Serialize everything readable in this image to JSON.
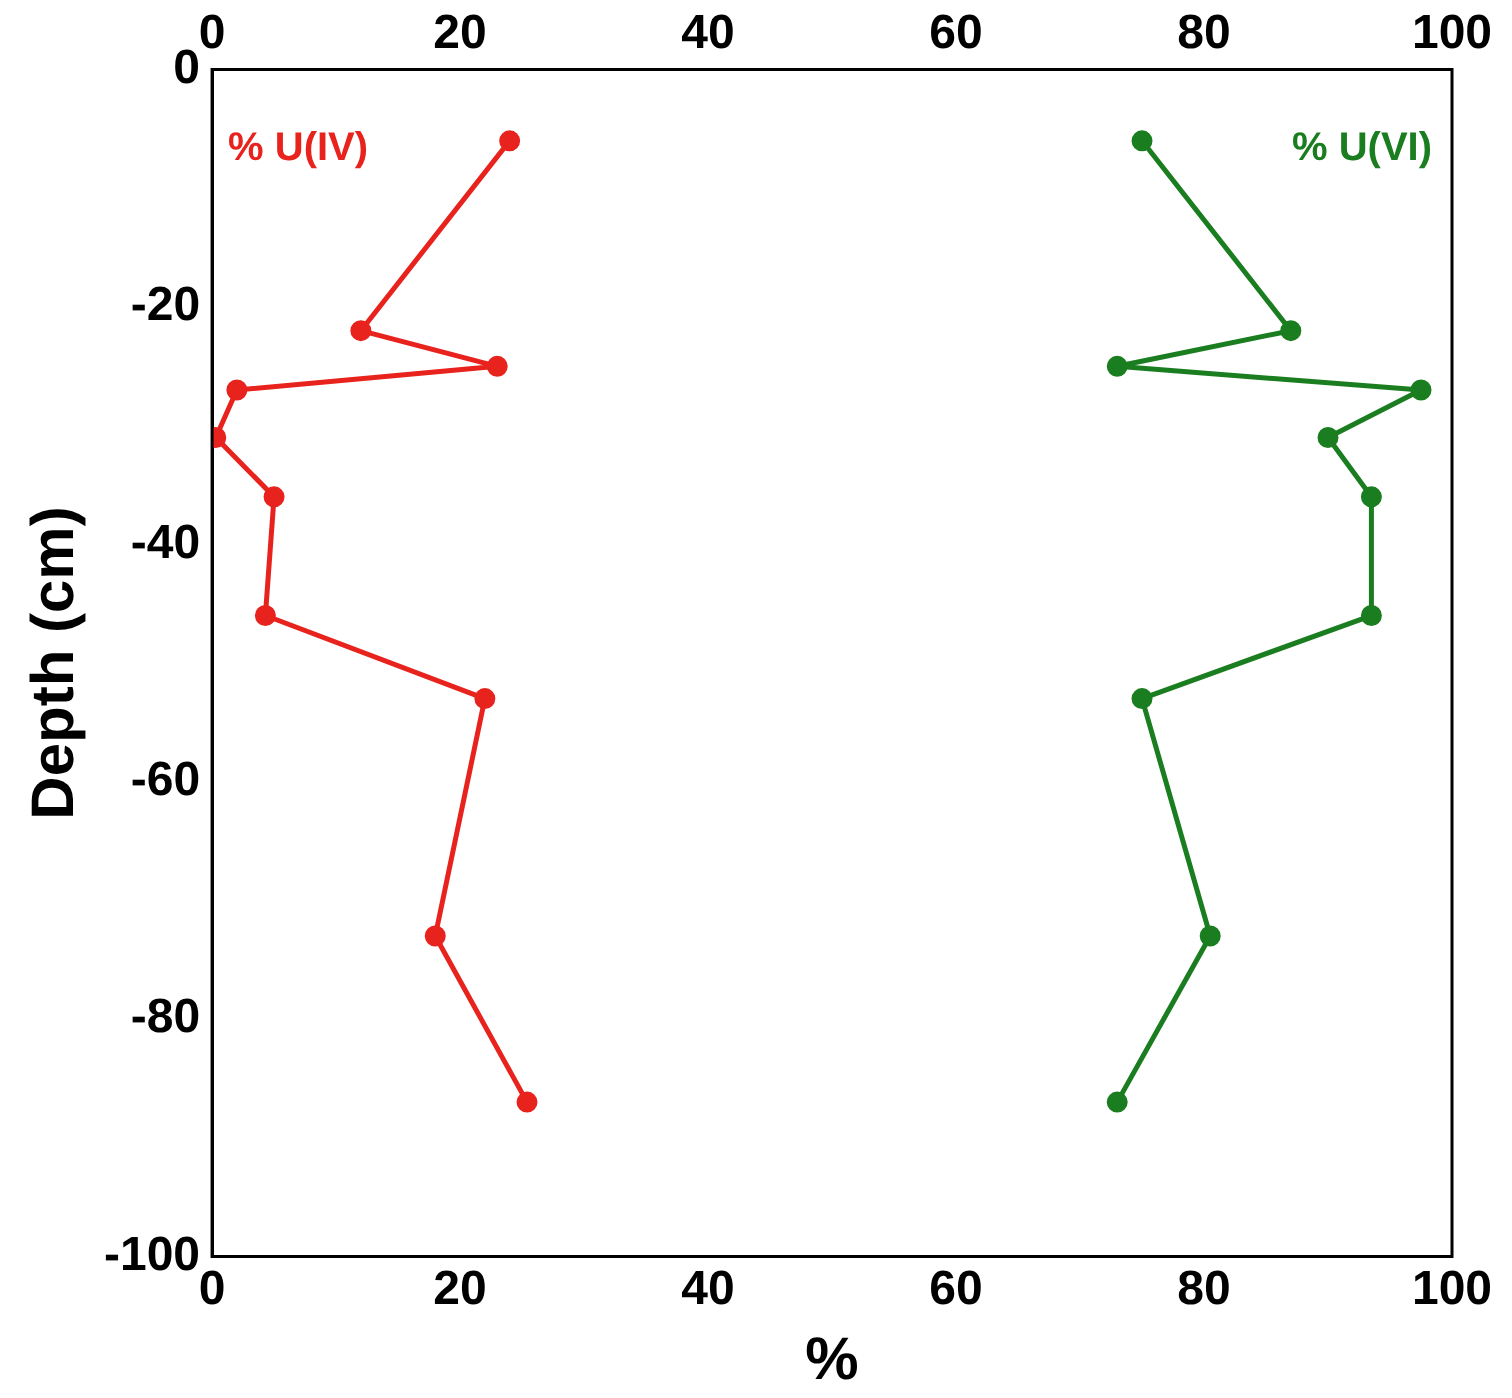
{
  "chart_data": {
    "type": "line",
    "xlabel": "%",
    "ylabel": "Depth (cm)",
    "xlim": [
      0,
      100
    ],
    "xticks": [
      0,
      20,
      40,
      60,
      80,
      100
    ],
    "x2lim": [
      0,
      100
    ],
    "x2ticks": [
      0,
      20,
      40,
      60,
      80,
      100
    ],
    "ylim": [
      -100,
      0
    ],
    "yticks": [
      -100,
      -80,
      -60,
      -40,
      -20,
      0
    ],
    "grid": false,
    "legend": false,
    "marker": "circle",
    "line_style": "solid",
    "series": [
      {
        "name": "% U(IV)",
        "color": "#e8231d",
        "x": [
          24,
          12,
          23,
          2,
          0.3,
          5,
          4.3,
          22,
          18,
          25.4
        ],
        "values": [
          -6,
          -22,
          -25,
          -27,
          -31,
          -36,
          -46,
          -53,
          -73,
          -87
        ]
      },
      {
        "name": "% U(VI)",
        "color": "#1a7d1f",
        "x": [
          75,
          87,
          73,
          97.5,
          90,
          93.5,
          93.5,
          75,
          80.5,
          73
        ],
        "values": [
          -6,
          -22,
          -25,
          -27,
          -31,
          -36,
          -46,
          -53,
          -73,
          -87
        ]
      }
    ]
  }
}
